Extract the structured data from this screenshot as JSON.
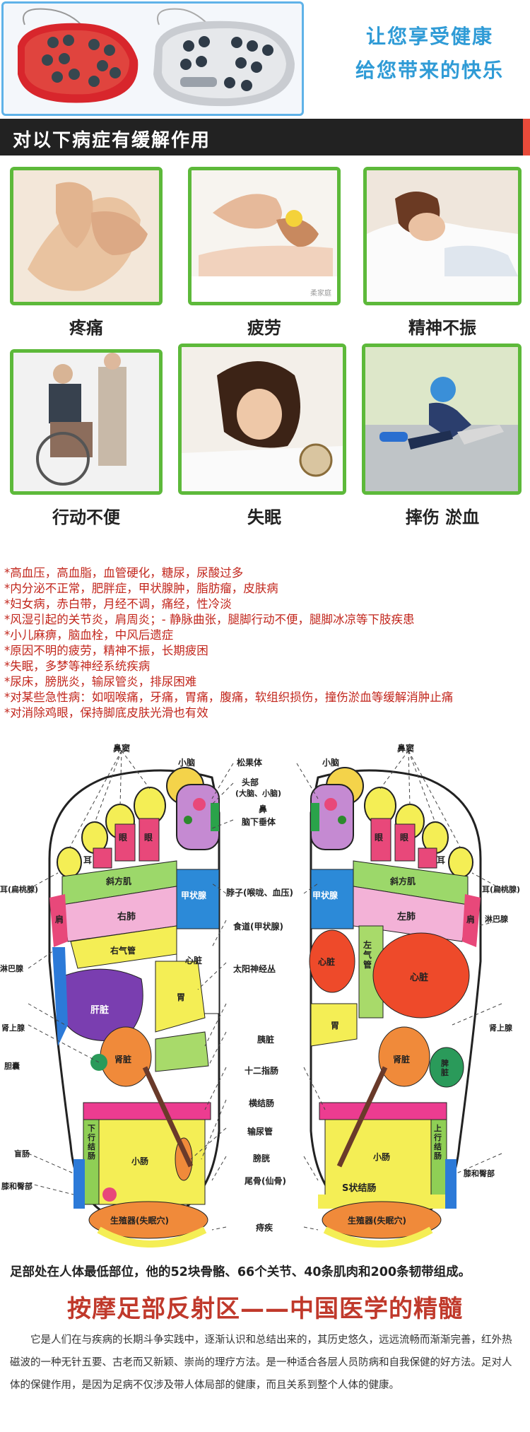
{
  "hero": {
    "slogan_line1": "让您享受健康",
    "slogan_line2": "给您带来的快乐"
  },
  "banner": {
    "title": "对以下病症有缓解作用"
  },
  "symptoms": [
    {
      "label": "疼痛"
    },
    {
      "label": "疲劳"
    },
    {
      "label": "精神不振"
    },
    {
      "label": "行动不便"
    },
    {
      "label": "失眠"
    },
    {
      "label": "摔伤 淤血"
    }
  ],
  "photo_watermark": "柔家庭",
  "conditions": [
    "*高血压，高血脂，血管硬化，糖尿，尿酸过多",
    "*内分泌不正常，肥胖症，甲状腺肿，脂肪瘤，皮肤病",
    "*妇女病，赤白带，月经不调，痛经，性冷淡",
    "*风湿引起的关节炎，肩周炎；- 静脉曲张，腿脚行动不便，腿脚冰凉等下肢疾患",
    "*小儿麻痹，脑血栓，中风后遗症",
    "*原因不明的疲劳，精神不振，长期疲困",
    "*失眠，多梦等神经系统疾病",
    "*尿床，膀胱炎，输尿管炎，排尿困难",
    "*对某些急性病：如咽喉痛，牙痛，胃痛，腹痛，软组织损伤，撞伤淤血等缓解消肿止痛",
    "*对消除鸡眼，保持脚底皮肤光滑也有效"
  ],
  "foot_chart": {
    "labels": {
      "bidou": "鼻窦",
      "xiaonao": "小脑",
      "songguoti": "松果体",
      "toubu": "头部",
      "toubu_sub": "(大脑、小脑)",
      "bi": "鼻",
      "naoxiachuiti": "脑下垂体",
      "er": "耳",
      "yan": "眼",
      "xiefangji": "斜方肌",
      "erbiantaoxian": "耳(扁桃腺)",
      "jiazhuangxian": "甲状腺",
      "bozi": "脖子(喉咙、血压)",
      "youfei": "右肺",
      "zuofei": "左肺",
      "jian": "肩",
      "linbaxian": "淋巴腺",
      "youqiguan": "右气管",
      "zuoqiguan": "左气管",
      "shidao": "食道(甲状腺)",
      "xinzang": "心脏",
      "ganzang": "肝脏",
      "taiyangshenjingcong": "太阳神经丛",
      "wei": "胃",
      "shenshangxian": "肾上腺",
      "shenzang": "肾脏",
      "yizang": "胰脏",
      "pizang": "脾脏",
      "dannang": "胆囊",
      "shierzhichang": "十二指肠",
      "hengjiechang": "横结肠",
      "xiaxingjiechang": "下行结肠",
      "shangxingjiechang": "上行结肠",
      "shuniaoguan": "输尿管",
      "xiaochang": "小肠",
      "pangguang": "膀胱",
      "mangchang": "盲肠",
      "weigu": "尾骨(仙骨)",
      "szhuangjiechang": "S状结肠",
      "xiheguibu": "膝和臀部",
      "shengzhiqi": "生殖器(失眠穴)",
      "zhichuang": "痔疾"
    }
  },
  "footer": {
    "line": "足部处在人体最低部位，他的52块骨骼、66个关节、40条肌肉和200条韧带组成。",
    "title": "按摩足部反射区——中国医学的精髓",
    "paragraph": "它是人们在与疾病的长期斗争实践中，逐渐认识和总结出来的，其历史悠久，远远流畅而渐渐完善，红外热磁波的一种无针五要、古老而又新颖、崇尚的理疗方法。是一种适合各层人员防病和自我保健的好方法。足对人体的保健作用，是因为足病不仅涉及带人体局部的健康，而且关系到整个人体的健康。"
  }
}
